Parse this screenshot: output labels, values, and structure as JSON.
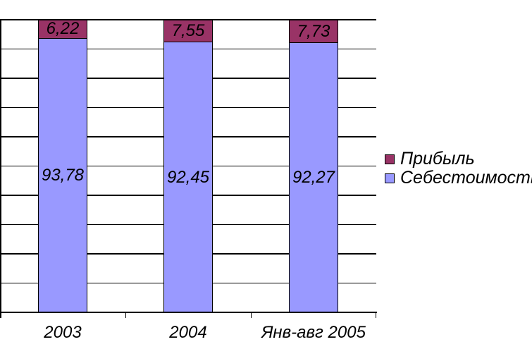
{
  "chart_data": {
    "type": "bar",
    "stacked": true,
    "orientation": "vertical",
    "title": "",
    "xlabel": "",
    "ylabel": "",
    "categories": [
      "2003",
      "2004",
      "Янв-авг 2005"
    ],
    "series": [
      {
        "name": "Себестоимость",
        "color": "#9999FF",
        "values": [
          93.78,
          92.45,
          92.27
        ],
        "labels": [
          "93,78",
          "92,45",
          "92,27"
        ]
      },
      {
        "name": "Прибыль",
        "color": "#993366",
        "values": [
          6.22,
          7.55,
          7.73
        ],
        "labels": [
          "6,22",
          "7,55",
          "7,73"
        ]
      }
    ],
    "ylim": [
      0,
      100
    ],
    "grid_interval": 10,
    "gridlines_visible": true,
    "y_tick_labels_visible": false,
    "legend_position": "right",
    "decimal_separator": ","
  },
  "legend": {
    "items": [
      {
        "label": "Прибыль",
        "color": "#993366"
      },
      {
        "label": "Себестоимость",
        "color": "#9999FF"
      }
    ]
  }
}
